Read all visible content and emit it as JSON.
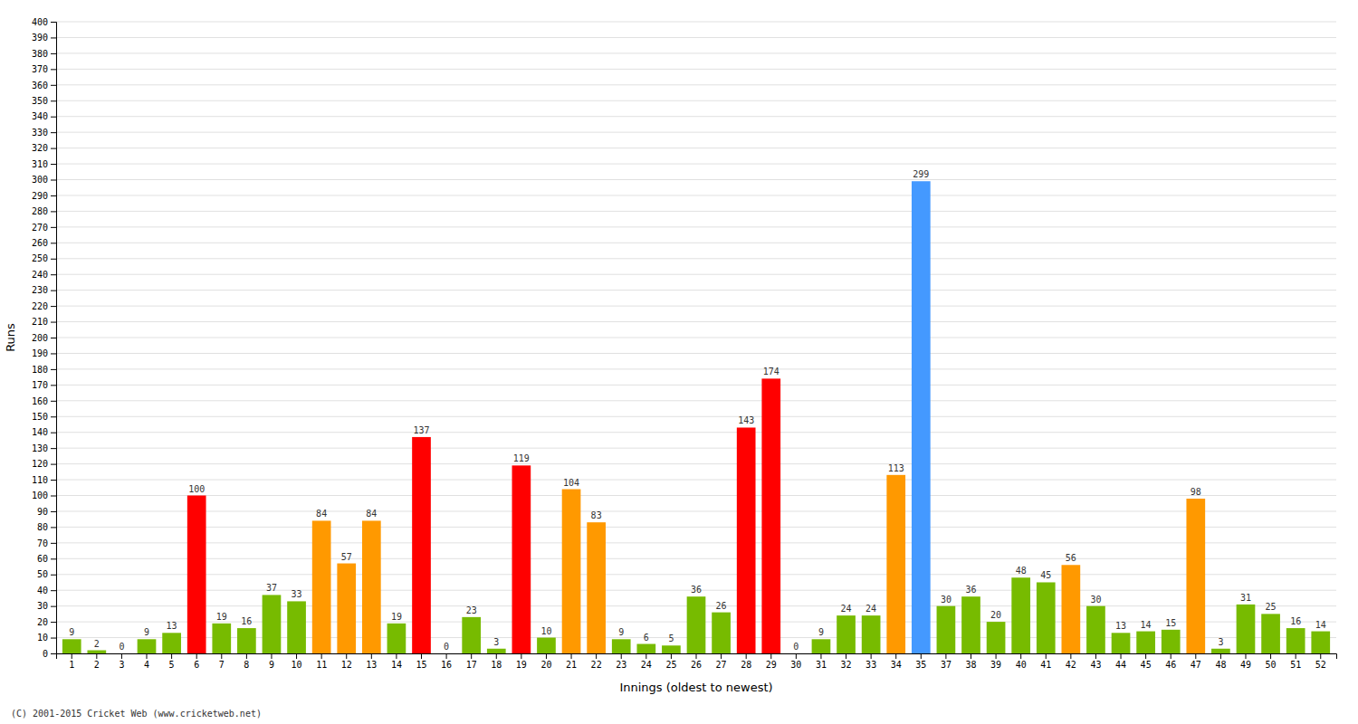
{
  "chart_data": {
    "type": "bar",
    "xlabel": "Innings (oldest to newest)",
    "ylabel": "Runs",
    "categories": [
      "1",
      "2",
      "3",
      "4",
      "5",
      "6",
      "7",
      "8",
      "9",
      "10",
      "11",
      "12",
      "13",
      "14",
      "15",
      "16",
      "17",
      "18",
      "19",
      "20",
      "21",
      "22",
      "23",
      "24",
      "25",
      "26",
      "27",
      "28",
      "29",
      "30",
      "31",
      "32",
      "33",
      "34",
      "35",
      "37",
      "38",
      "39",
      "40",
      "41",
      "42",
      "43",
      "44",
      "45",
      "46",
      "47",
      "48",
      "49",
      "50",
      "51",
      "52"
    ],
    "values": [
      9,
      2,
      0,
      9,
      13,
      100,
      19,
      16,
      37,
      33,
      84,
      57,
      84,
      19,
      137,
      0,
      23,
      3,
      119,
      10,
      104,
      83,
      9,
      6,
      5,
      36,
      26,
      143,
      174,
      0,
      9,
      24,
      24,
      113,
      299,
      30,
      36,
      20,
      48,
      45,
      56,
      30,
      13,
      14,
      15,
      98,
      3,
      31,
      25,
      16,
      14
    ],
    "colors": [
      "#77bb00",
      "#77bb00",
      "#77bb00",
      "#77bb00",
      "#77bb00",
      "#ff0000",
      "#77bb00",
      "#77bb00",
      "#77bb00",
      "#77bb00",
      "#ff9900",
      "#ff9900",
      "#ff9900",
      "#77bb00",
      "#ff0000",
      "#77bb00",
      "#77bb00",
      "#77bb00",
      "#ff0000",
      "#77bb00",
      "#ff9900",
      "#ff9900",
      "#77bb00",
      "#77bb00",
      "#77bb00",
      "#77bb00",
      "#77bb00",
      "#ff0000",
      "#ff0000",
      "#77bb00",
      "#77bb00",
      "#77bb00",
      "#77bb00",
      "#ff9900",
      "#4499ff",
      "#77bb00",
      "#77bb00",
      "#77bb00",
      "#77bb00",
      "#77bb00",
      "#ff9900",
      "#77bb00",
      "#77bb00",
      "#77bb00",
      "#77bb00",
      "#ff9900",
      "#77bb00",
      "#77bb00",
      "#77bb00",
      "#77bb00",
      "#77bb00"
    ],
    "ylim": [
      0,
      400
    ],
    "yticks": [
      0,
      10,
      20,
      30,
      40,
      50,
      60,
      70,
      80,
      90,
      100,
      110,
      120,
      130,
      140,
      150,
      160,
      170,
      180,
      190,
      200,
      210,
      220,
      230,
      240,
      250,
      260,
      270,
      280,
      290,
      300,
      310,
      320,
      330,
      340,
      350,
      360,
      370,
      380,
      390,
      400
    ],
    "grid": true,
    "data_labels": true,
    "annotations": [
      "(C) 2001-2015 Cricket Web (www.cricketweb.net)"
    ]
  }
}
